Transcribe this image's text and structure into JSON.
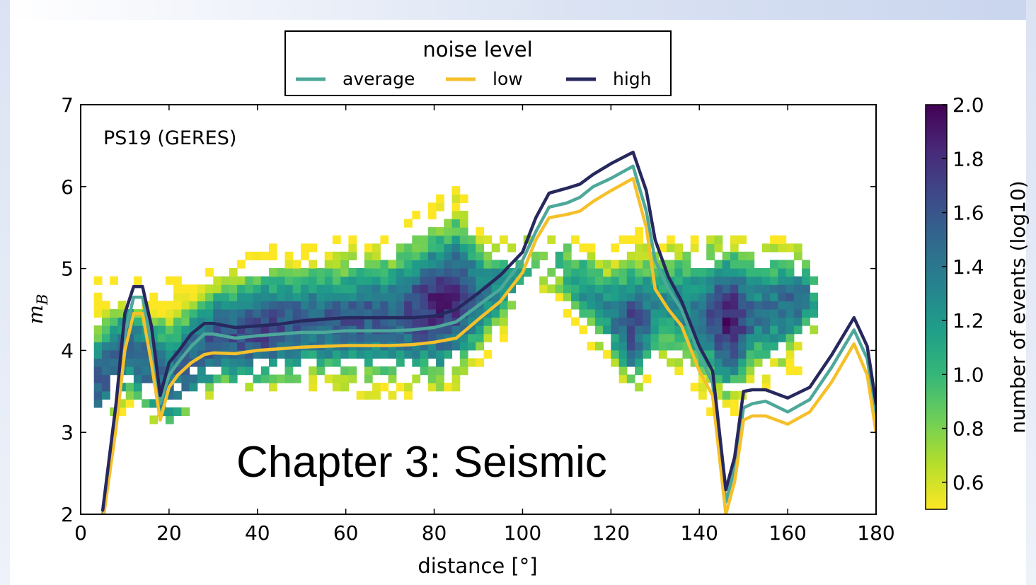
{
  "overlay": {
    "title": "Chapter 3: Seismic"
  },
  "chart_data": {
    "type": "heatmap",
    "annotation": "PS19 (GERES)",
    "xlabel": "distance [°]",
    "ylabel": "m_B",
    "xlim": [
      0,
      180
    ],
    "ylim": [
      2,
      7
    ],
    "xticks": [
      0,
      20,
      40,
      60,
      80,
      100,
      120,
      140,
      160,
      180
    ],
    "yticks": [
      2,
      3,
      4,
      5,
      6,
      7
    ],
    "colorbar": {
      "label": "number of events (log10)",
      "range": [
        0.5,
        2.0
      ],
      "ticks": [
        "2.0",
        "1.8",
        "1.6",
        "1.4",
        "1.2",
        "1.0",
        "0.8",
        "0.6"
      ],
      "colormap": [
        "#fde725",
        "#b5de2b",
        "#6ece58",
        "#35b779",
        "#1f9e89",
        "#26828e",
        "#31688e",
        "#3e4989",
        "#482878",
        "#440154"
      ]
    },
    "legend": {
      "title": "noise level",
      "placement": "top-center",
      "entries": [
        {
          "name": "average",
          "color": "#4da89a"
        },
        {
          "name": "low",
          "color": "#f5c02a"
        },
        {
          "name": "high",
          "color": "#27285e"
        }
      ]
    },
    "series": [
      {
        "name": "average",
        "color": "#4da89a",
        "x": [
          5,
          8,
          10,
          12,
          14,
          16,
          18,
          20,
          22,
          25,
          28,
          30,
          35,
          40,
          45,
          50,
          55,
          60,
          65,
          70,
          75,
          80,
          85,
          90,
          95,
          100,
          103,
          106,
          110,
          113,
          116,
          120,
          125,
          128,
          130,
          133,
          136,
          140,
          143,
          146,
          148,
          150,
          152,
          155,
          160,
          165,
          170,
          175,
          178,
          180
        ],
        "y": [
          2.0,
          3.2,
          4.2,
          4.65,
          4.65,
          4.1,
          3.35,
          3.7,
          3.85,
          4.05,
          4.2,
          4.2,
          4.15,
          4.18,
          4.2,
          4.22,
          4.22,
          4.24,
          4.24,
          4.24,
          4.25,
          4.28,
          4.35,
          4.55,
          4.75,
          5.1,
          5.45,
          5.75,
          5.8,
          5.87,
          6.0,
          6.1,
          6.25,
          5.7,
          5.1,
          4.75,
          4.5,
          3.95,
          3.6,
          2.15,
          2.55,
          3.3,
          3.35,
          3.38,
          3.25,
          3.4,
          3.8,
          4.25,
          3.9,
          3.2
        ]
      },
      {
        "name": "low",
        "color": "#f5c02a",
        "x": [
          5,
          8,
          10,
          12,
          14,
          16,
          18,
          20,
          22,
          25,
          28,
          30,
          35,
          40,
          45,
          50,
          55,
          60,
          65,
          70,
          75,
          80,
          85,
          90,
          95,
          100,
          103,
          106,
          110,
          113,
          116,
          120,
          125,
          128,
          130,
          133,
          136,
          140,
          143,
          146,
          148,
          150,
          152,
          155,
          160,
          165,
          170,
          175,
          178,
          180
        ],
        "y": [
          1.9,
          3.05,
          4.0,
          4.45,
          4.45,
          3.85,
          3.15,
          3.55,
          3.7,
          3.85,
          3.95,
          3.97,
          3.96,
          4.0,
          4.02,
          4.04,
          4.05,
          4.06,
          4.06,
          4.06,
          4.07,
          4.1,
          4.15,
          4.38,
          4.6,
          4.95,
          5.35,
          5.62,
          5.66,
          5.7,
          5.82,
          5.95,
          6.1,
          5.5,
          4.75,
          4.5,
          4.3,
          3.75,
          3.45,
          2.0,
          2.4,
          3.15,
          3.2,
          3.2,
          3.1,
          3.25,
          3.62,
          4.08,
          3.7,
          3.0
        ]
      },
      {
        "name": "high",
        "color": "#27285e",
        "x": [
          5,
          8,
          10,
          12,
          14,
          16,
          18,
          20,
          22,
          25,
          28,
          30,
          35,
          40,
          45,
          50,
          55,
          60,
          65,
          70,
          75,
          80,
          85,
          90,
          95,
          100,
          103,
          106,
          110,
          113,
          116,
          120,
          125,
          128,
          130,
          133,
          136,
          140,
          143,
          146,
          148,
          150,
          152,
          155,
          160,
          165,
          170,
          175,
          178,
          180
        ],
        "y": [
          2.05,
          3.35,
          4.45,
          4.78,
          4.78,
          4.3,
          3.45,
          3.85,
          3.98,
          4.2,
          4.33,
          4.33,
          4.28,
          4.3,
          4.32,
          4.36,
          4.38,
          4.4,
          4.4,
          4.4,
          4.4,
          4.42,
          4.5,
          4.7,
          4.92,
          5.2,
          5.62,
          5.92,
          5.98,
          6.03,
          6.15,
          6.28,
          6.42,
          5.95,
          5.35,
          4.9,
          4.6,
          4.05,
          3.75,
          2.3,
          2.7,
          3.5,
          3.52,
          3.52,
          3.42,
          3.55,
          3.95,
          4.4,
          4.05,
          3.35
        ]
      }
    ],
    "density_profile": {
      "x_range": [
        3,
        166
      ],
      "bin_width_deg": 1.8,
      "bin_height_mag": 0.1,
      "x": [
        3,
        10,
        16,
        20,
        25,
        30,
        40,
        50,
        60,
        70,
        80,
        85,
        90,
        100,
        106,
        112,
        118,
        124,
        130,
        135,
        140,
        146,
        152,
        158,
        162,
        166
      ],
      "y_low": [
        3.2,
        3.3,
        3.15,
        3.1,
        3.4,
        3.5,
        3.5,
        3.55,
        3.5,
        3.45,
        3.5,
        3.6,
        3.8,
        4.5,
        4.8,
        4.2,
        3.8,
        3.5,
        3.7,
        3.6,
        3.3,
        3.25,
        3.5,
        3.7,
        3.8,
        4.1
      ],
      "y_high": [
        4.9,
        4.8,
        4.9,
        5.0,
        5.1,
        5.1,
        5.2,
        5.3,
        5.3,
        5.4,
        5.8,
        6.0,
        5.4,
        5.3,
        5.5,
        5.4,
        5.2,
        5.5,
        5.4,
        5.4,
        5.3,
        5.4,
        5.3,
        5.4,
        5.2,
        4.8
      ],
      "y_center": [
        3.55,
        4.0,
        3.7,
        3.6,
        3.9,
        4.1,
        4.2,
        4.3,
        4.3,
        4.35,
        4.5,
        4.6,
        4.6,
        4.9,
        5.05,
        4.75,
        4.45,
        4.25,
        4.5,
        4.5,
        4.4,
        4.3,
        4.4,
        4.5,
        4.6,
        4.55
      ],
      "peak_log10": [
        1.55,
        1.5,
        1.5,
        1.45,
        1.55,
        1.6,
        1.7,
        1.55,
        1.6,
        1.55,
        1.85,
        1.75,
        1.4,
        1.1,
        0.9,
        1.25,
        1.3,
        1.7,
        1.25,
        1.3,
        1.45,
        1.95,
        1.4,
        1.45,
        1.5,
        1.1
      ]
    }
  }
}
